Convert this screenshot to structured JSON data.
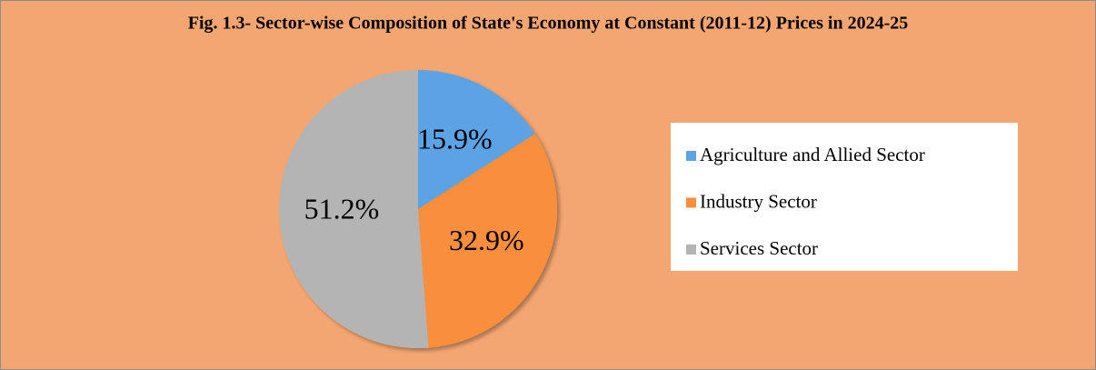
{
  "chart_data": {
    "type": "pie",
    "title": "Fig. 1.3- Sector-wise Composition of State's Economy at Constant (2011-12) Prices in 2024-25",
    "categories": [
      "Agriculture and Allied Sector",
      "Industry Sector",
      "Services Sector"
    ],
    "values": [
      15.9,
      32.9,
      51.2
    ],
    "value_labels": [
      "15.9%",
      "32.9%",
      "51.2%"
    ],
    "colors": [
      "#5ba3e6",
      "#f98f3d",
      "#b4b4b4"
    ],
    "legend": "right"
  }
}
